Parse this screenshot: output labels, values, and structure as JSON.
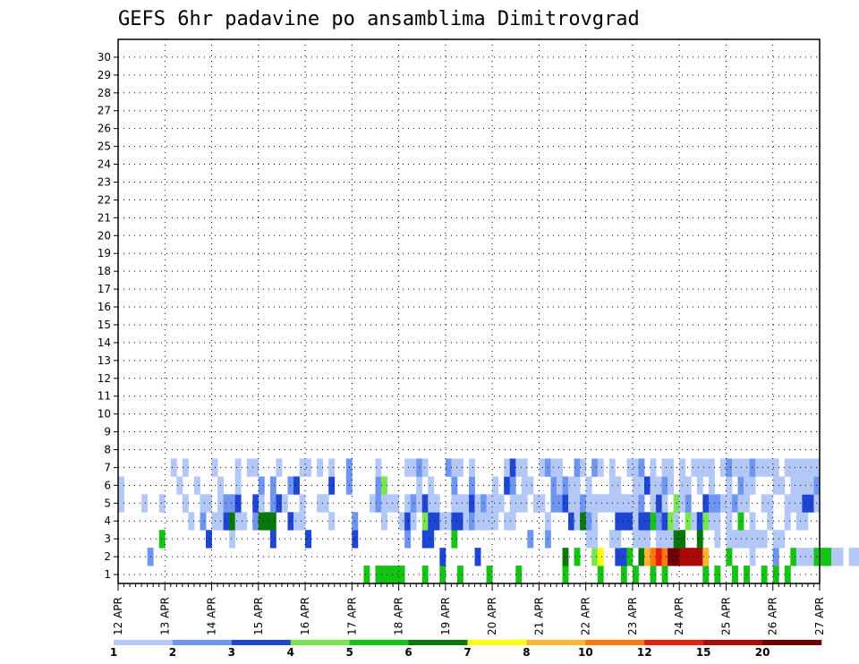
{
  "chart_data": {
    "type": "heatmap",
    "title": "GEFS 6hr padavine po ansamblima Dimitrovgrad",
    "x_ticks": [
      "12 APR",
      "13 APR",
      "14 APR",
      "15 APR",
      "16 APR",
      "17 APR",
      "18 APR",
      "19 APR",
      "20 APR",
      "21 APR",
      "22 APR",
      "23 APR",
      "24 APR",
      "25 APR",
      "26 APR",
      "27 APR"
    ],
    "x_range": [
      "12 APR 00Z",
      "27 APR 00Z"
    ],
    "step_hours": 6,
    "y_ticks": [
      1,
      2,
      3,
      4,
      5,
      6,
      7,
      8,
      9,
      10,
      11,
      12,
      13,
      14,
      15,
      16,
      17,
      18,
      19,
      20,
      21,
      22,
      23,
      24,
      25,
      26,
      27,
      28,
      29,
      30
    ],
    "y_label": "",
    "grid": true,
    "legend": {
      "placement": "bottom",
      "labels": [
        "1",
        "2",
        "3",
        "4",
        "5",
        "6",
        "7",
        "8",
        "10",
        "12",
        "15",
        "20"
      ],
      "colors": [
        "#b4c8f8",
        "#6e96f0",
        "#1e46d2",
        "#78e650",
        "#14c314",
        "#087808",
        "#ffff0a",
        "#ffb432",
        "#ff7814",
        "#e61e0a",
        "#aa0a0a",
        "#700000"
      ]
    },
    "cells": [
      [
        42,
        1,
        5
      ],
      [
        44,
        1,
        5
      ],
      [
        45,
        1,
        5
      ],
      [
        46,
        1,
        5
      ],
      [
        47,
        1,
        5
      ],
      [
        48,
        1,
        5
      ],
      [
        52,
        1,
        5
      ],
      [
        55,
        1,
        5
      ],
      [
        58,
        1,
        5
      ],
      [
        63,
        1,
        5
      ],
      [
        68,
        1,
        5
      ],
      [
        76,
        1,
        5
      ],
      [
        82,
        1,
        5
      ],
      [
        86,
        1,
        5
      ],
      [
        88,
        1,
        5
      ],
      [
        91,
        1,
        5
      ],
      [
        93,
        1,
        5
      ],
      [
        100,
        1,
        5
      ],
      [
        102,
        1,
        5
      ],
      [
        105,
        1,
        5
      ],
      [
        107,
        1,
        5
      ],
      [
        110,
        1,
        5
      ],
      [
        112,
        1,
        5
      ],
      [
        114,
        1,
        5
      ],
      [
        5,
        2,
        2
      ],
      [
        55,
        2,
        3
      ],
      [
        61,
        2,
        3
      ],
      [
        76,
        2,
        6
      ],
      [
        78,
        2,
        5
      ],
      [
        81,
        2,
        4
      ],
      [
        82,
        2,
        7
      ],
      [
        85,
        2,
        3
      ],
      [
        86,
        2,
        3
      ],
      [
        87,
        2,
        5
      ],
      [
        89,
        2,
        6
      ],
      [
        90,
        2,
        8
      ],
      [
        91,
        2,
        9
      ],
      [
        92,
        2,
        10
      ],
      [
        93,
        2,
        9
      ],
      [
        94,
        2,
        12
      ],
      [
        95,
        2,
        12
      ],
      [
        96,
        2,
        11
      ],
      [
        97,
        2,
        11
      ],
      [
        98,
        2,
        11
      ],
      [
        99,
        2,
        11
      ],
      [
        100,
        2,
        8
      ],
      [
        104,
        2,
        5
      ],
      [
        108,
        2,
        1
      ],
      [
        112,
        2,
        2
      ],
      [
        115,
        2,
        5
      ],
      [
        116,
        2,
        1
      ],
      [
        117,
        2,
        1
      ],
      [
        118,
        2,
        1
      ],
      [
        119,
        2,
        5
      ],
      [
        120,
        2,
        5
      ],
      [
        121,
        2,
        5
      ],
      [
        122,
        2,
        1
      ],
      [
        123,
        2,
        1
      ],
      [
        125,
        2,
        1
      ],
      [
        126,
        2,
        1
      ],
      [
        130,
        2,
        1
      ],
      [
        136,
        2,
        1
      ],
      [
        137,
        2,
        1
      ],
      [
        143,
        2,
        1
      ],
      [
        145,
        2,
        3
      ],
      [
        146,
        2,
        1
      ],
      [
        150,
        2,
        1
      ],
      [
        151,
        2,
        1
      ],
      [
        152,
        2,
        3
      ],
      [
        155,
        2,
        5
      ],
      [
        156,
        2,
        1
      ],
      [
        158,
        2,
        5
      ],
      [
        159,
        2,
        5
      ],
      [
        7,
        3,
        5
      ],
      [
        15,
        3,
        3
      ],
      [
        19,
        3,
        1
      ],
      [
        26,
        3,
        3
      ],
      [
        32,
        3,
        3
      ],
      [
        40,
        3,
        3
      ],
      [
        49,
        3,
        2
      ],
      [
        52,
        3,
        3
      ],
      [
        53,
        3,
        3
      ],
      [
        57,
        3,
        5
      ],
      [
        70,
        3,
        2
      ],
      [
        73,
        3,
        2
      ],
      [
        80,
        3,
        1
      ],
      [
        81,
        3,
        1
      ],
      [
        84,
        3,
        1
      ],
      [
        85,
        3,
        1
      ],
      [
        88,
        3,
        1
      ],
      [
        89,
        3,
        1
      ],
      [
        90,
        3,
        1
      ],
      [
        92,
        3,
        1
      ],
      [
        93,
        3,
        1
      ],
      [
        94,
        3,
        1
      ],
      [
        95,
        3,
        6
      ],
      [
        96,
        3,
        6
      ],
      [
        99,
        3,
        6
      ],
      [
        102,
        3,
        1
      ],
      [
        104,
        3,
        1
      ],
      [
        105,
        3,
        1
      ],
      [
        106,
        3,
        1
      ],
      [
        107,
        3,
        1
      ],
      [
        108,
        3,
        1
      ],
      [
        109,
        3,
        1
      ],
      [
        110,
        3,
        1
      ],
      [
        112,
        3,
        1
      ],
      [
        113,
        3,
        1
      ],
      [
        12,
        4,
        1
      ],
      [
        14,
        4,
        2
      ],
      [
        16,
        4,
        1
      ],
      [
        17,
        4,
        1
      ],
      [
        18,
        4,
        3
      ],
      [
        19,
        4,
        6
      ],
      [
        20,
        4,
        1
      ],
      [
        21,
        4,
        1
      ],
      [
        23,
        4,
        2
      ],
      [
        24,
        4,
        6
      ],
      [
        25,
        4,
        6
      ],
      [
        26,
        4,
        6
      ],
      [
        29,
        4,
        3
      ],
      [
        30,
        4,
        1
      ],
      [
        31,
        4,
        1
      ],
      [
        36,
        4,
        1
      ],
      [
        40,
        4,
        2
      ],
      [
        45,
        4,
        1
      ],
      [
        48,
        4,
        1
      ],
      [
        49,
        4,
        3
      ],
      [
        50,
        4,
        1
      ],
      [
        52,
        4,
        4
      ],
      [
        53,
        4,
        3
      ],
      [
        54,
        4,
        3
      ],
      [
        55,
        4,
        1
      ],
      [
        56,
        4,
        1
      ],
      [
        57,
        4,
        3
      ],
      [
        58,
        4,
        3
      ],
      [
        59,
        4,
        1
      ],
      [
        60,
        4,
        2
      ],
      [
        61,
        4,
        1
      ],
      [
        62,
        4,
        1
      ],
      [
        63,
        4,
        1
      ],
      [
        64,
        4,
        1
      ],
      [
        66,
        4,
        1
      ],
      [
        67,
        4,
        1
      ],
      [
        73,
        4,
        1
      ],
      [
        77,
        4,
        3
      ],
      [
        78,
        4,
        1
      ],
      [
        79,
        4,
        6
      ],
      [
        80,
        4,
        2
      ],
      [
        81,
        4,
        1
      ],
      [
        85,
        4,
        3
      ],
      [
        86,
        4,
        3
      ],
      [
        87,
        4,
        3
      ],
      [
        88,
        4,
        1
      ],
      [
        89,
        4,
        3
      ],
      [
        90,
        4,
        3
      ],
      [
        91,
        4,
        5
      ],
      [
        92,
        4,
        2
      ],
      [
        93,
        4,
        3
      ],
      [
        94,
        4,
        4
      ],
      [
        95,
        4,
        1
      ],
      [
        97,
        4,
        4
      ],
      [
        98,
        4,
        1
      ],
      [
        99,
        4,
        3
      ],
      [
        100,
        4,
        4
      ],
      [
        101,
        4,
        1
      ],
      [
        102,
        4,
        1
      ],
      [
        104,
        4,
        1
      ],
      [
        106,
        4,
        5
      ],
      [
        108,
        4,
        1
      ],
      [
        111,
        4,
        1
      ],
      [
        114,
        4,
        1
      ],
      [
        116,
        4,
        1
      ],
      [
        117,
        4,
        1
      ],
      [
        0,
        5,
        1
      ],
      [
        4,
        5,
        1
      ],
      [
        7,
        5,
        1
      ],
      [
        11,
        5,
        1
      ],
      [
        14,
        5,
        1
      ],
      [
        15,
        5,
        1
      ],
      [
        17,
        5,
        1
      ],
      [
        18,
        5,
        2
      ],
      [
        19,
        5,
        2
      ],
      [
        20,
        5,
        3
      ],
      [
        23,
        5,
        3
      ],
      [
        24,
        5,
        1
      ],
      [
        26,
        5,
        2
      ],
      [
        27,
        5,
        3
      ],
      [
        28,
        5,
        1
      ],
      [
        31,
        5,
        1
      ],
      [
        34,
        5,
        1
      ],
      [
        35,
        5,
        1
      ],
      [
        43,
        5,
        1
      ],
      [
        44,
        5,
        2
      ],
      [
        45,
        5,
        1
      ],
      [
        46,
        5,
        1
      ],
      [
        47,
        5,
        1
      ],
      [
        49,
        5,
        1
      ],
      [
        50,
        5,
        2
      ],
      [
        51,
        5,
        1
      ],
      [
        52,
        5,
        3
      ],
      [
        53,
        5,
        1
      ],
      [
        54,
        5,
        1
      ],
      [
        57,
        5,
        1
      ],
      [
        58,
        5,
        1
      ],
      [
        59,
        5,
        1
      ],
      [
        60,
        5,
        3
      ],
      [
        61,
        5,
        1
      ],
      [
        62,
        5,
        2
      ],
      [
        63,
        5,
        1
      ],
      [
        64,
        5,
        1
      ],
      [
        65,
        5,
        1
      ],
      [
        67,
        5,
        1
      ],
      [
        68,
        5,
        1
      ],
      [
        69,
        5,
        1
      ],
      [
        71,
        5,
        1
      ],
      [
        72,
        5,
        1
      ],
      [
        74,
        5,
        2
      ],
      [
        75,
        5,
        2
      ],
      [
        76,
        5,
        3
      ],
      [
        77,
        5,
        1
      ],
      [
        78,
        5,
        1
      ],
      [
        79,
        5,
        2
      ],
      [
        80,
        5,
        1
      ],
      [
        81,
        5,
        1
      ],
      [
        82,
        5,
        1
      ],
      [
        83,
        5,
        1
      ],
      [
        84,
        5,
        1
      ],
      [
        85,
        5,
        1
      ],
      [
        86,
        5,
        1
      ],
      [
        87,
        5,
        1
      ],
      [
        88,
        5,
        1
      ],
      [
        89,
        5,
        2
      ],
      [
        91,
        5,
        1
      ],
      [
        92,
        5,
        3
      ],
      [
        93,
        5,
        1
      ],
      [
        95,
        5,
        4
      ],
      [
        96,
        5,
        1
      ],
      [
        97,
        5,
        2
      ],
      [
        100,
        5,
        3
      ],
      [
        101,
        5,
        2
      ],
      [
        102,
        5,
        2
      ],
      [
        103,
        5,
        1
      ],
      [
        104,
        5,
        1
      ],
      [
        105,
        5,
        2
      ],
      [
        106,
        5,
        1
      ],
      [
        107,
        5,
        1
      ],
      [
        110,
        5,
        1
      ],
      [
        111,
        5,
        1
      ],
      [
        114,
        5,
        1
      ],
      [
        115,
        5,
        1
      ],
      [
        116,
        5,
        1
      ],
      [
        117,
        5,
        3
      ],
      [
        118,
        5,
        3
      ],
      [
        119,
        5,
        1
      ],
      [
        0,
        6,
        1
      ],
      [
        10,
        6,
        1
      ],
      [
        13,
        6,
        1
      ],
      [
        17,
        6,
        1
      ],
      [
        20,
        6,
        1
      ],
      [
        24,
        6,
        2
      ],
      [
        26,
        6,
        2
      ],
      [
        29,
        6,
        2
      ],
      [
        30,
        6,
        3
      ],
      [
        36,
        6,
        3
      ],
      [
        39,
        6,
        2
      ],
      [
        44,
        6,
        2
      ],
      [
        45,
        6,
        4
      ],
      [
        51,
        6,
        1
      ],
      [
        53,
        6,
        1
      ],
      [
        57,
        6,
        2
      ],
      [
        60,
        6,
        2
      ],
      [
        64,
        6,
        1
      ],
      [
        66,
        6,
        3
      ],
      [
        67,
        6,
        2
      ],
      [
        69,
        6,
        1
      ],
      [
        70,
        6,
        1
      ],
      [
        74,
        6,
        2
      ],
      [
        75,
        6,
        1
      ],
      [
        76,
        6,
        2
      ],
      [
        77,
        6,
        1
      ],
      [
        78,
        6,
        1
      ],
      [
        80,
        6,
        1
      ],
      [
        84,
        6,
        1
      ],
      [
        85,
        6,
        1
      ],
      [
        88,
        6,
        1
      ],
      [
        89,
        6,
        1
      ],
      [
        90,
        6,
        3
      ],
      [
        91,
        6,
        1
      ],
      [
        92,
        6,
        1
      ],
      [
        93,
        6,
        2
      ],
      [
        94,
        6,
        1
      ],
      [
        96,
        6,
        1
      ],
      [
        97,
        6,
        1
      ],
      [
        99,
        6,
        1
      ],
      [
        101,
        6,
        1
      ],
      [
        104,
        6,
        1
      ],
      [
        106,
        6,
        2
      ],
      [
        107,
        6,
        1
      ],
      [
        108,
        6,
        1
      ],
      [
        112,
        6,
        1
      ],
      [
        113,
        6,
        1
      ],
      [
        115,
        6,
        1
      ],
      [
        116,
        6,
        1
      ],
      [
        117,
        6,
        1
      ],
      [
        118,
        6,
        1
      ],
      [
        119,
        6,
        2
      ],
      [
        9,
        7,
        1
      ],
      [
        11,
        7,
        1
      ],
      [
        16,
        7,
        1
      ],
      [
        20,
        7,
        1
      ],
      [
        22,
        7,
        1
      ],
      [
        23,
        7,
        1
      ],
      [
        27,
        7,
        1
      ],
      [
        31,
        7,
        1
      ],
      [
        32,
        7,
        1
      ],
      [
        34,
        7,
        1
      ],
      [
        36,
        7,
        1
      ],
      [
        39,
        7,
        2
      ],
      [
        44,
        7,
        1
      ],
      [
        49,
        7,
        1
      ],
      [
        50,
        7,
        1
      ],
      [
        51,
        7,
        2
      ],
      [
        52,
        7,
        1
      ],
      [
        56,
        7,
        2
      ],
      [
        57,
        7,
        1
      ],
      [
        58,
        7,
        1
      ],
      [
        60,
        7,
        1
      ],
      [
        66,
        7,
        1
      ],
      [
        67,
        7,
        3
      ],
      [
        68,
        7,
        1
      ],
      [
        69,
        7,
        1
      ],
      [
        72,
        7,
        1
      ],
      [
        73,
        7,
        2
      ],
      [
        74,
        7,
        1
      ],
      [
        75,
        7,
        1
      ],
      [
        78,
        7,
        2
      ],
      [
        79,
        7,
        1
      ],
      [
        81,
        7,
        2
      ],
      [
        82,
        7,
        1
      ],
      [
        84,
        7,
        1
      ],
      [
        87,
        7,
        1
      ],
      [
        88,
        7,
        1
      ],
      [
        89,
        7,
        2
      ],
      [
        91,
        7,
        1
      ],
      [
        93,
        7,
        1
      ],
      [
        94,
        7,
        1
      ],
      [
        96,
        7,
        1
      ],
      [
        98,
        7,
        1
      ],
      [
        99,
        7,
        1
      ],
      [
        100,
        7,
        1
      ],
      [
        101,
        7,
        1
      ],
      [
        103,
        7,
        1
      ],
      [
        104,
        7,
        2
      ],
      [
        105,
        7,
        1
      ],
      [
        106,
        7,
        1
      ],
      [
        107,
        7,
        1
      ],
      [
        108,
        7,
        2
      ],
      [
        109,
        7,
        1
      ],
      [
        110,
        7,
        1
      ],
      [
        111,
        7,
        1
      ],
      [
        112,
        7,
        1
      ],
      [
        114,
        7,
        1
      ],
      [
        115,
        7,
        1
      ],
      [
        116,
        7,
        1
      ],
      [
        117,
        7,
        1
      ],
      [
        118,
        7,
        1
      ],
      [
        119,
        7,
        1
      ]
    ]
  }
}
